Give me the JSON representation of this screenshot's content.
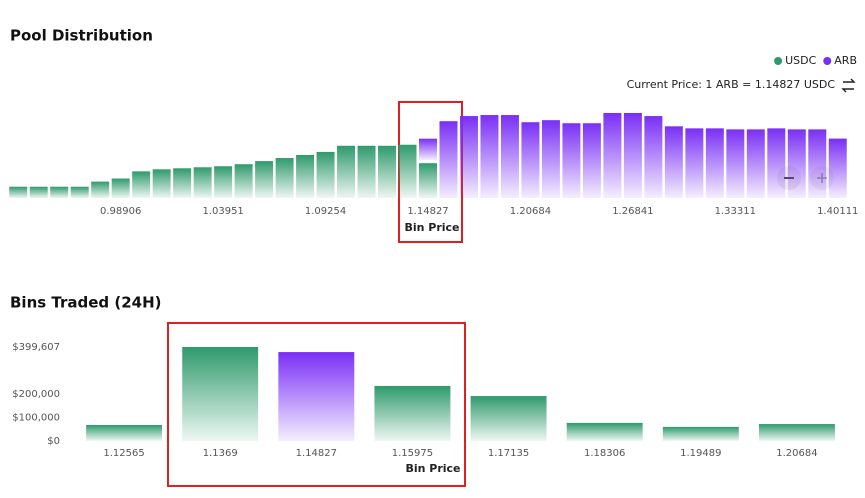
{
  "chart_data": [
    {
      "type": "bar",
      "title": "Pool Distribution",
      "stacked": true,
      "current_price": "Current Price: 1 ARB = 1.14827 USDC",
      "annotation": "Bin Price",
      "legend": "top-right",
      "categories": [
        null,
        null,
        null,
        null,
        null,
        "0.98906",
        null,
        null,
        null,
        null,
        "1.03951",
        null,
        null,
        null,
        null,
        "1.09254",
        null,
        null,
        null,
        null,
        "1.14827",
        null,
        null,
        null,
        null,
        "1.20684",
        null,
        null,
        null,
        null,
        "1.26841",
        null,
        null,
        null,
        null,
        "1.33311",
        null,
        null,
        null,
        null,
        "1.40111"
      ],
      "series": [
        {
          "name": "USDC",
          "color": "#2f9a6c",
          "values": [
            11,
            11,
            11,
            11,
            16,
            19,
            26,
            28,
            29,
            30,
            31,
            33,
            36,
            39,
            42,
            45,
            51,
            51,
            51,
            52,
            34,
            null,
            null,
            null,
            null,
            null,
            null,
            null,
            null,
            null,
            null,
            null,
            null,
            null,
            null,
            null,
            null,
            null,
            null,
            null,
            null
          ]
        },
        {
          "name": "ARB",
          "color": "#7a2ff5",
          "values": [
            null,
            null,
            null,
            null,
            null,
            null,
            null,
            null,
            null,
            null,
            null,
            null,
            null,
            null,
            null,
            null,
            null,
            null,
            null,
            null,
            21,
            75,
            80,
            81,
            81,
            74,
            76,
            73,
            73,
            83,
            83,
            80,
            70,
            68,
            68,
            67,
            67,
            68,
            67,
            67,
            58
          ]
        }
      ]
    },
    {
      "type": "bar",
      "title": "Bins Traded (24H)",
      "annotation": "Bin Price",
      "categories": [
        "1.12565",
        "1.1369",
        "1.14827",
        "1.15975",
        "1.17135",
        "1.18306",
        "1.19489",
        "1.20684"
      ],
      "values": [
        68000,
        399607,
        378000,
        234000,
        191000,
        77000,
        60000,
        72000
      ],
      "colors": [
        "#2f9a6c",
        "#2f9a6c",
        "#7a2ff5",
        "#2f9a6c",
        "#2f9a6c",
        "#2f9a6c",
        "#2f9a6c",
        "#2f9a6c"
      ],
      "ylim": [
        0,
        399607
      ],
      "yticks": [
        {
          "value": 0,
          "label": "$0"
        },
        {
          "value": 100000,
          "label": "$100,000"
        },
        {
          "value": 200000,
          "label": "$200,000"
        },
        {
          "value": 399607,
          "label": "$399,607"
        }
      ]
    }
  ]
}
